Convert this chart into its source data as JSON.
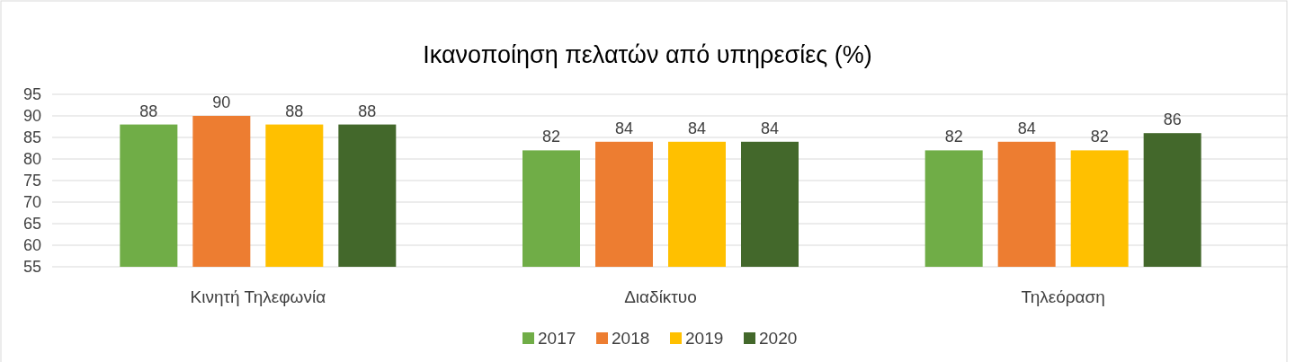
{
  "chart_data": {
    "type": "bar",
    "title": "Ικανοποίηση πελατών από υπηρεσίες (%)",
    "categories": [
      "Κινητή Τηλεφωνία",
      "Διαδίκτυο",
      "Τηλεόραση"
    ],
    "series": [
      {
        "name": "2017",
        "color": "#70ad47",
        "values": [
          88,
          82,
          82
        ]
      },
      {
        "name": "2018",
        "color": "#ed7d31",
        "values": [
          90,
          84,
          84
        ]
      },
      {
        "name": "2019",
        "color": "#ffc000",
        "values": [
          88,
          84,
          82
        ]
      },
      {
        "name": "2020",
        "color": "#43682b",
        "values": [
          88,
          84,
          86
        ]
      }
    ],
    "ylim": [
      55,
      95
    ],
    "yticks": [
      55,
      60,
      65,
      70,
      75,
      80,
      85,
      90,
      95
    ],
    "grid": "y",
    "legend": "bottom",
    "data_labels": true
  }
}
